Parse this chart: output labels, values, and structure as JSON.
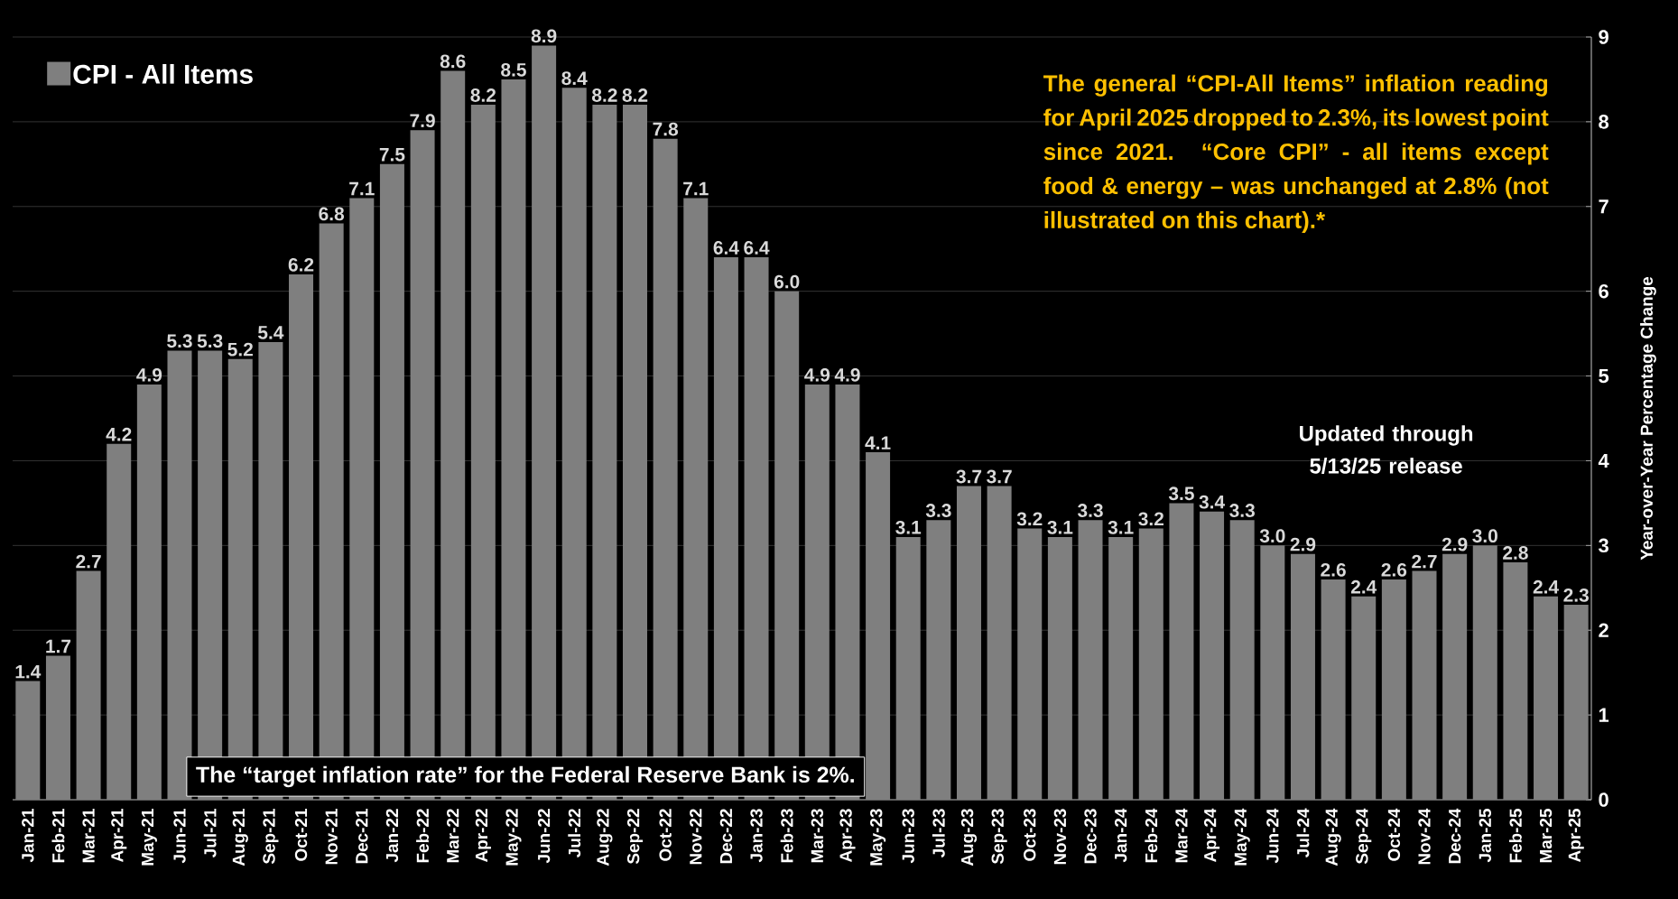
{
  "chart_data": {
    "type": "bar",
    "categories": [
      "Jan-21",
      "Feb-21",
      "Mar-21",
      "Apr-21",
      "May-21",
      "Jun-21",
      "Jul-21",
      "Aug-21",
      "Sep-21",
      "Oct-21",
      "Nov-21",
      "Dec-21",
      "Jan-22",
      "Feb-22",
      "Mar-22",
      "Apr-22",
      "May-22",
      "Jun-22",
      "Jul-22",
      "Aug-22",
      "Sep-22",
      "Oct-22",
      "Nov-22",
      "Dec-22",
      "Jan-23",
      "Feb-23",
      "Mar-23",
      "Apr-23",
      "May-23",
      "Jun-23",
      "Jul-23",
      "Aug-23",
      "Sep-23",
      "Oct-23",
      "Nov-23",
      "Dec-23",
      "Jan-24",
      "Feb-24",
      "Mar-24",
      "Apr-24",
      "May-24",
      "Jun-24",
      "Jul-24",
      "Aug-24",
      "Sep-24",
      "Oct-24",
      "Nov-24",
      "Dec-24",
      "Jan-25",
      "Feb-25",
      "Mar-25",
      "Apr-25"
    ],
    "series": [
      {
        "name": "CPI - All Items",
        "color": "#7f7f7f",
        "values": [
          1.4,
          1.7,
          2.7,
          4.2,
          4.9,
          5.3,
          5.3,
          5.2,
          5.4,
          6.2,
          6.8,
          7.1,
          7.5,
          7.9,
          8.6,
          8.2,
          8.5,
          8.9,
          8.4,
          8.2,
          8.2,
          7.8,
          7.1,
          6.4,
          6.4,
          6.0,
          4.9,
          4.9,
          4.1,
          3.1,
          3.3,
          3.7,
          3.7,
          3.2,
          3.1,
          3.3,
          3.1,
          3.2,
          3.5,
          3.4,
          3.3,
          3.0,
          2.9,
          2.6,
          2.4,
          2.6,
          2.7,
          2.9,
          3.0,
          2.8,
          2.4,
          2.3
        ],
        "value_labels": [
          "1.4",
          "1.7",
          "2.7",
          "4.2",
          "4.9",
          "5.3",
          "5.3",
          "5.2",
          "5.4",
          "6.2",
          "6.8",
          "7.1",
          "7.5",
          "7.9",
          "8.6",
          "8.2",
          "8.5",
          "8.9",
          "8.4",
          "8.2",
          "8.2",
          "7.8",
          "7.1",
          "6.4",
          "6.4",
          "6.0",
          "4.9",
          "4.9",
          "4.1",
          "3.1",
          "3.3",
          "3.7",
          "3.7",
          "3.2",
          "3.1",
          "3.3",
          "3.1",
          "3.2",
          "3.5",
          "3.4",
          "3.3",
          "3.0",
          "2.9",
          "2.6",
          "2.4",
          "2.6",
          "2.7",
          "2.9",
          "3.0",
          "2.8",
          "2.4",
          "2.3"
        ]
      }
    ],
    "ylabel": "Year-over-Year Percentage Change",
    "ylim": [
      0,
      9
    ],
    "yticks": [
      0,
      1,
      2,
      3,
      4,
      5,
      6,
      7,
      8,
      9
    ],
    "grid": "y",
    "legend": "top left",
    "annotations": [
      "The general “CPI-All Items” inflation reading for April 2025 dropped to 2.3%, its lowest point since 2021. “Core CPI” - all items except food & energy – was unchanged at 2.8% (not illustrated on this chart).*",
      "Updated through 5/13/25 release",
      "The “target inflation rate” for the Federal Reserve Bank is 2%."
    ]
  }
}
